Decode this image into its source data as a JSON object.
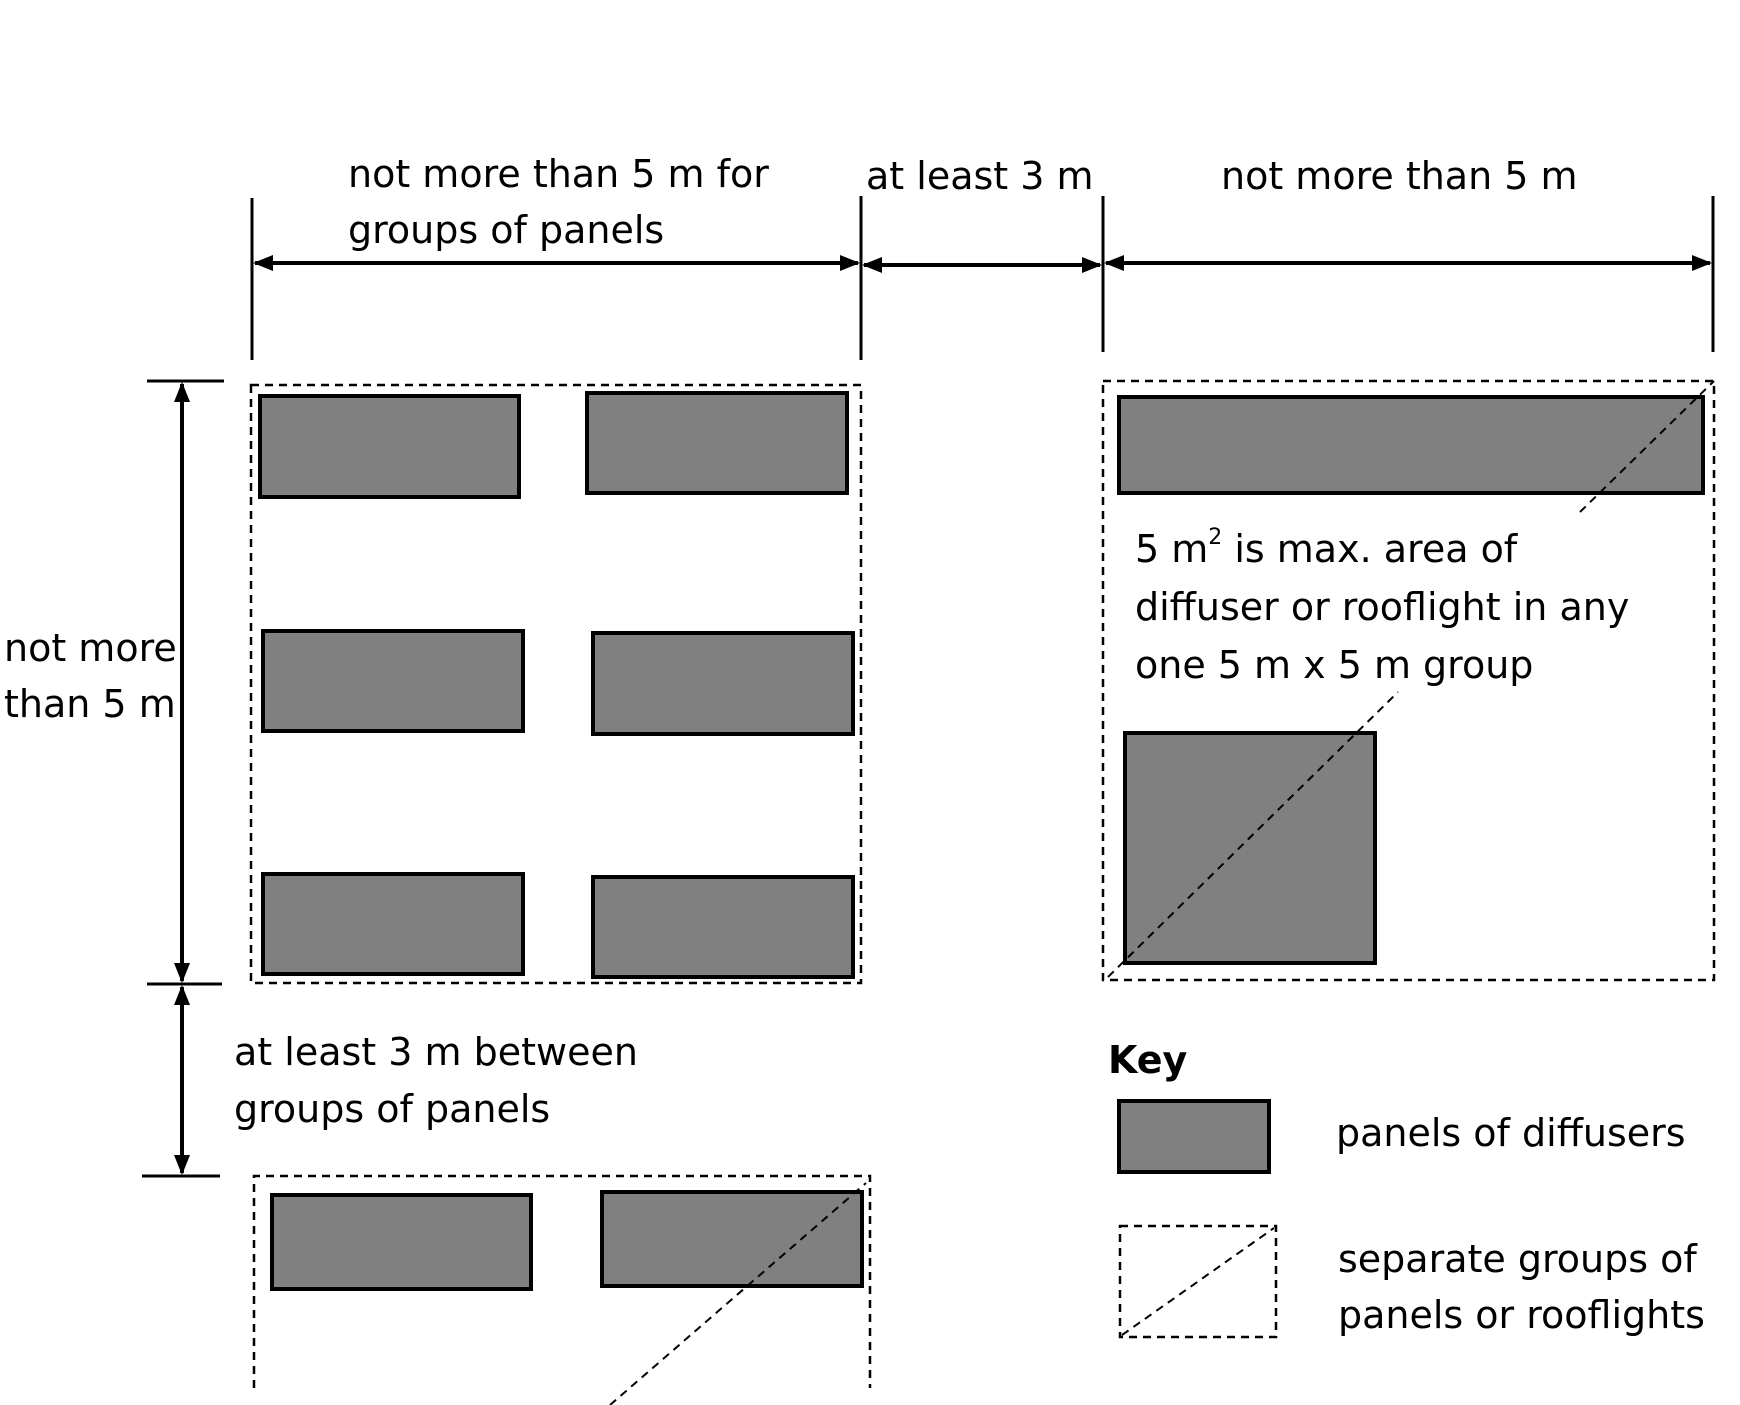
{
  "labels": {
    "top_left_dim_line1": "not more than 5 m  for",
    "top_left_dim_line2": "groups of panels",
    "top_mid_dim": "at least 3 m",
    "top_right_dim": "not more than 5 m",
    "left_dim_line1": "not more",
    "left_dim_line2": "than 5 m",
    "between_groups_line1": "at least 3 m between",
    "between_groups_line2": "groups of panels",
    "area_note_line1_prefix": "5 m",
    "area_note_line1_sup": "2",
    "area_note_line1_suffix": " is max. area of",
    "area_note_line2": "diffuser or rooflight in any",
    "area_note_line3": "one 5 m x 5 m group"
  },
  "key": {
    "title": "Key",
    "items": [
      {
        "icon": "panel-swatch",
        "label": "panels of diffusers"
      },
      {
        "icon": "dashed-group-swatch",
        "label_line1": "separate groups of",
        "label_line2": "panels or rooflights"
      }
    ]
  },
  "colors": {
    "panel_fill": "#808080",
    "outline": "#000000",
    "background": "#ffffff"
  }
}
